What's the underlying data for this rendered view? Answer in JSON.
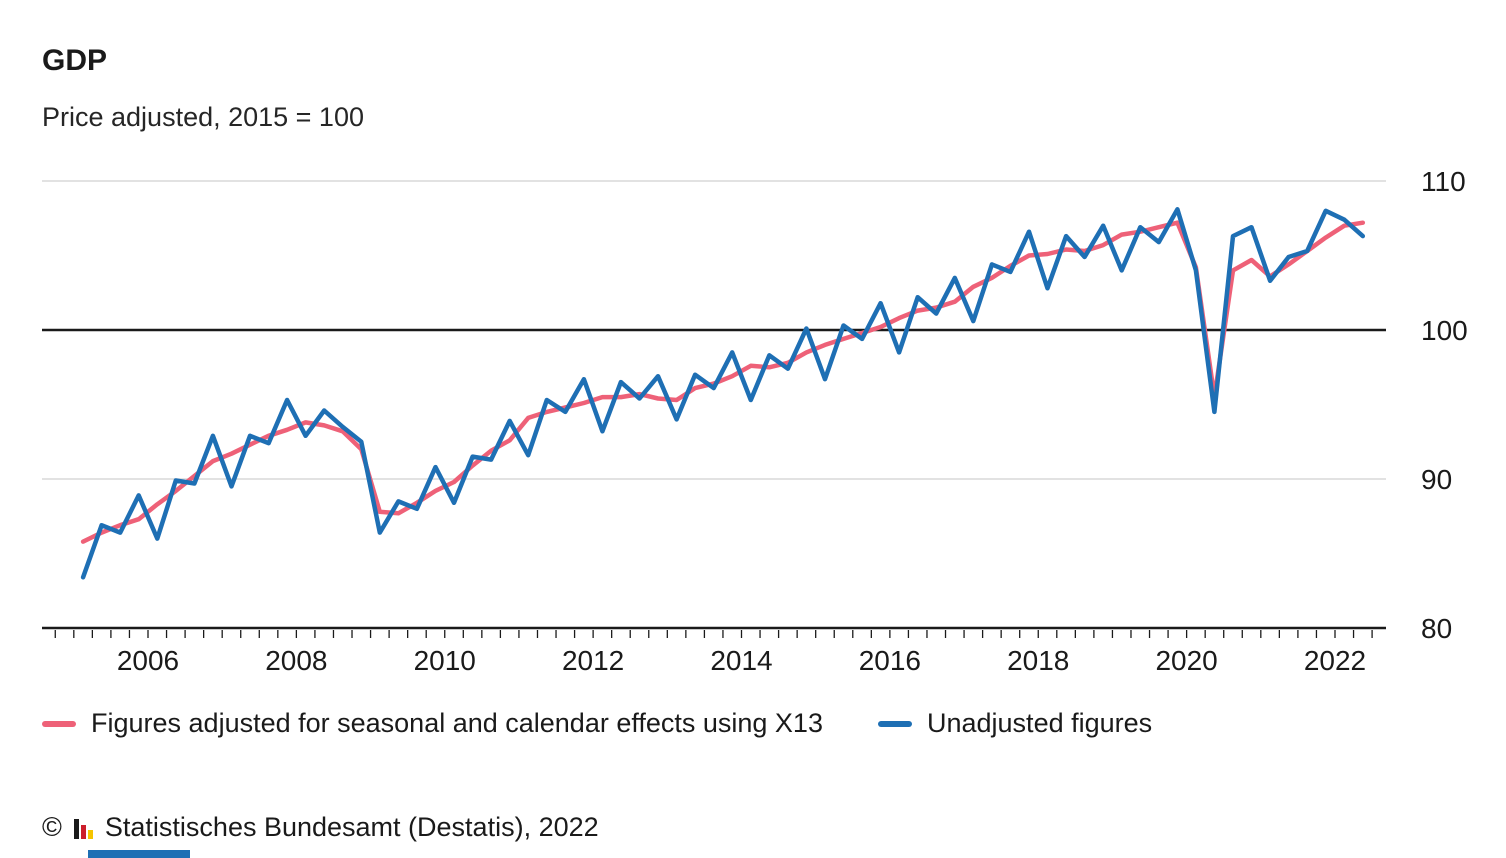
{
  "header": {
    "title": "GDP",
    "subtitle": "Price adjusted, 2015 = 100"
  },
  "chart_data": {
    "type": "line",
    "title": "GDP",
    "subtitle": "Price adjusted, 2015 = 100",
    "x_unit": "quarter",
    "quarters": [
      "2005 Q1",
      "2005 Q2",
      "2005 Q3",
      "2005 Q4",
      "2006 Q1",
      "2006 Q2",
      "2006 Q3",
      "2006 Q4",
      "2007 Q1",
      "2007 Q2",
      "2007 Q3",
      "2007 Q4",
      "2008 Q1",
      "2008 Q2",
      "2008 Q3",
      "2008 Q4",
      "2009 Q1",
      "2009 Q2",
      "2009 Q3",
      "2009 Q4",
      "2010 Q1",
      "2010 Q2",
      "2010 Q3",
      "2010 Q4",
      "2011 Q1",
      "2011 Q2",
      "2011 Q3",
      "2011 Q4",
      "2012 Q1",
      "2012 Q2",
      "2012 Q3",
      "2012 Q4",
      "2013 Q1",
      "2013 Q2",
      "2013 Q3",
      "2013 Q4",
      "2014 Q1",
      "2014 Q2",
      "2014 Q3",
      "2014 Q4",
      "2015 Q1",
      "2015 Q2",
      "2015 Q3",
      "2015 Q4",
      "2016 Q1",
      "2016 Q2",
      "2016 Q3",
      "2016 Q4",
      "2017 Q1",
      "2017 Q2",
      "2017 Q3",
      "2017 Q4",
      "2018 Q1",
      "2018 Q2",
      "2018 Q3",
      "2018 Q4",
      "2019 Q1",
      "2019 Q2",
      "2019 Q3",
      "2019 Q4",
      "2020 Q1",
      "2020 Q2",
      "2020 Q3",
      "2020 Q4",
      "2021 Q1",
      "2021 Q2",
      "2021 Q3",
      "2021 Q4",
      "2022 Q1",
      "2022 Q2"
    ],
    "series": [
      {
        "name": "Figures adjusted for seasonal and calendar effects using X13",
        "color": "#ee6178",
        "values": [
          85.8,
          86.4,
          86.9,
          87.3,
          88.3,
          89.2,
          90.2,
          91.2,
          91.7,
          92.3,
          92.9,
          93.3,
          93.8,
          93.6,
          93.2,
          92.0,
          87.8,
          87.7,
          88.4,
          89.2,
          89.8,
          90.9,
          91.9,
          92.6,
          94.1,
          94.5,
          94.8,
          95.1,
          95.5,
          95.5,
          95.7,
          95.4,
          95.3,
          96.1,
          96.4,
          96.9,
          97.6,
          97.5,
          97.8,
          98.5,
          99.0,
          99.4,
          99.8,
          100.2,
          100.8,
          101.3,
          101.5,
          101.9,
          102.9,
          103.5,
          104.3,
          105.0,
          105.1,
          105.4,
          105.3,
          105.7,
          106.4,
          106.6,
          106.9,
          107.2,
          104.2,
          95.5,
          104.0,
          104.7,
          103.6,
          104.4,
          105.3,
          106.2,
          107.0,
          107.2
        ]
      },
      {
        "name": "Unadjusted figures",
        "color": "#1e6fb4",
        "values": [
          83.4,
          86.9,
          86.4,
          88.9,
          86.0,
          89.9,
          89.7,
          92.9,
          89.5,
          92.9,
          92.4,
          95.3,
          92.9,
          94.6,
          93.5,
          92.5,
          86.4,
          88.5,
          88.0,
          90.8,
          88.4,
          91.5,
          91.3,
          93.9,
          91.6,
          95.3,
          94.5,
          96.7,
          93.2,
          96.5,
          95.4,
          96.9,
          94.0,
          97.0,
          96.1,
          98.5,
          95.3,
          98.3,
          97.4,
          100.1,
          96.7,
          100.3,
          99.4,
          101.8,
          98.5,
          102.2,
          101.1,
          103.5,
          100.6,
          104.4,
          103.9,
          106.6,
          102.8,
          106.3,
          104.9,
          107.0,
          104.0,
          106.9,
          105.9,
          108.1,
          104.0,
          94.5,
          106.3,
          106.9,
          103.3,
          104.9,
          105.3,
          108.0,
          107.4,
          106.3
        ]
      }
    ],
    "ylim": [
      80,
      110
    ],
    "yticks": [
      80,
      90,
      100,
      110
    ],
    "reference_line": 100,
    "xticks": [
      2006,
      2008,
      2010,
      2012,
      2014,
      2016,
      2018,
      2020,
      2022
    ],
    "grid": "horizontal light gray at 90 and 110, solid black at 100, x-axis at 80",
    "legend_position": "bottom"
  },
  "legend": {
    "items": [
      {
        "label": "Figures adjusted for seasonal and calendar effects using X13",
        "color": "#ee6178"
      },
      {
        "label": "Unadjusted figures",
        "color": "#1e6fb4"
      }
    ]
  },
  "footer": {
    "copyright_symbol": "©",
    "source": "Statistisches Bundesamt (Destatis), 2022"
  }
}
